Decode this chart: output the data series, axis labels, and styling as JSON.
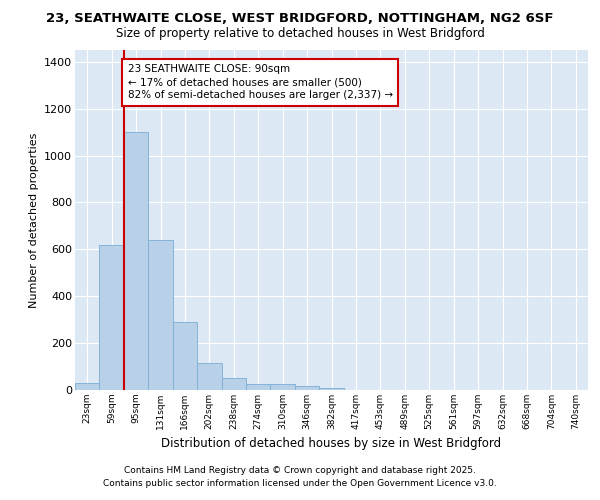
{
  "title_line1": "23, SEATHWAITE CLOSE, WEST BRIDGFORD, NOTTINGHAM, NG2 6SF",
  "title_line2": "Size of property relative to detached houses in West Bridgford",
  "xlabel": "Distribution of detached houses by size in West Bridgford",
  "ylabel": "Number of detached properties",
  "footer_line1": "Contains HM Land Registry data © Crown copyright and database right 2025.",
  "footer_line2": "Contains public sector information licensed under the Open Government Licence v3.0.",
  "categories": [
    "23sqm",
    "59sqm",
    "95sqm",
    "131sqm",
    "166sqm",
    "202sqm",
    "238sqm",
    "274sqm",
    "310sqm",
    "346sqm",
    "382sqm",
    "417sqm",
    "453sqm",
    "489sqm",
    "525sqm",
    "561sqm",
    "597sqm",
    "632sqm",
    "668sqm",
    "704sqm",
    "740sqm"
  ],
  "values": [
    30,
    620,
    1100,
    640,
    290,
    115,
    50,
    25,
    25,
    15,
    10,
    0,
    0,
    0,
    0,
    0,
    0,
    0,
    0,
    0,
    0
  ],
  "bar_color": "#b8d0e8",
  "bar_edge_color": "#7aaed6",
  "bg_color": "#dce9f5",
  "grid_color": "#ffffff",
  "vline_color": "#cc0000",
  "annotation_text": "23 SEATHWAITE CLOSE: 90sqm\n← 17% of detached houses are smaller (500)\n82% of semi-detached houses are larger (2,337) →",
  "annotation_box_color": "white",
  "annotation_box_edge": "#cc0000",
  "ylim": [
    0,
    1450
  ],
  "yticks": [
    0,
    200,
    400,
    600,
    800,
    1000,
    1200,
    1400
  ],
  "vline_pos": 1.5
}
